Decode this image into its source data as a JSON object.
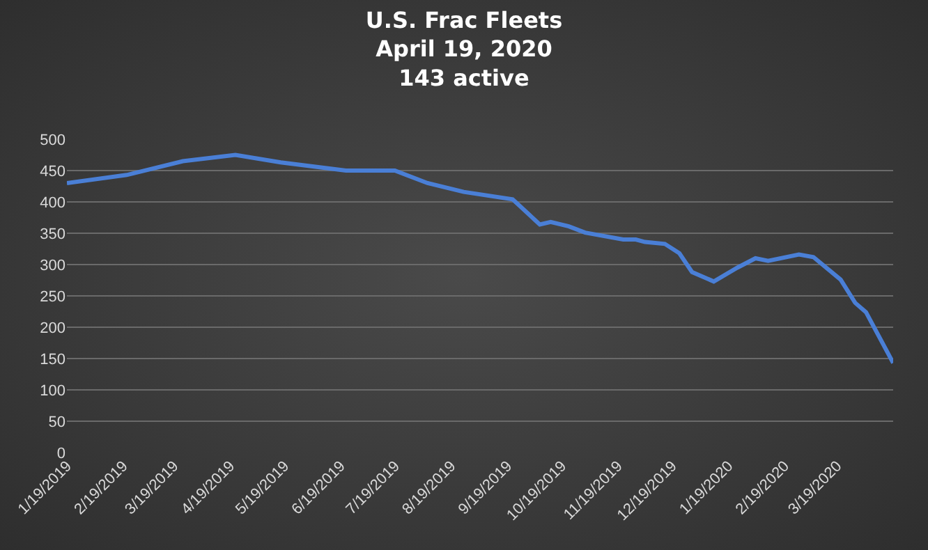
{
  "chart_data": {
    "type": "line",
    "title": "U.S. Frac Fleets\nApril 19, 2020\n143 active",
    "x": [
      "2019-01-19",
      "2019-02-21",
      "2019-03-24",
      "2019-04-22",
      "2019-05-17",
      "2019-06-22",
      "2019-07-19",
      "2019-08-06",
      "2019-08-26",
      "2019-09-22",
      "2019-10-07",
      "2019-10-13",
      "2019-10-23",
      "2019-11-01",
      "2019-11-22",
      "2019-11-29",
      "2019-12-04",
      "2019-12-15",
      "2019-12-23",
      "2019-12-30",
      "2020-01-11",
      "2020-01-24",
      "2020-02-03",
      "2020-02-10",
      "2020-02-27",
      "2020-03-06",
      "2020-03-21",
      "2020-03-29",
      "2020-04-04",
      "2020-04-19"
    ],
    "series": [
      {
        "color": "#4a7fd6",
        "values": [
          430,
          443,
          465,
          475,
          463,
          450,
          450,
          430,
          416,
          404,
          364,
          368,
          361,
          351,
          340,
          340,
          336,
          333,
          318,
          288,
          273,
          295,
          310,
          306,
          316,
          312,
          276,
          239,
          224,
          143
        ]
      }
    ],
    "xlim": [
      "2019-01-19",
      "2020-04-19"
    ],
    "xticks": [
      {
        "value": "2019-01-19",
        "label": "1/19/2019"
      },
      {
        "value": "2019-02-19",
        "label": "2/19/2019"
      },
      {
        "value": "2019-03-19",
        "label": "3/19/2019"
      },
      {
        "value": "2019-04-19",
        "label": "4/19/2019"
      },
      {
        "value": "2019-05-19",
        "label": "5/19/2019"
      },
      {
        "value": "2019-06-19",
        "label": "6/19/2019"
      },
      {
        "value": "2019-07-19",
        "label": "7/19/2019"
      },
      {
        "value": "2019-08-19",
        "label": "8/19/2019"
      },
      {
        "value": "2019-09-19",
        "label": "9/19/2019"
      },
      {
        "value": "2019-10-19",
        "label": "10/19/2019"
      },
      {
        "value": "2019-11-19",
        "label": "11/19/2019"
      },
      {
        "value": "2019-12-19",
        "label": "12/19/2019"
      },
      {
        "value": "2020-01-19",
        "label": "1/19/2020"
      },
      {
        "value": "2020-02-19",
        "label": "2/19/2020"
      },
      {
        "value": "2020-03-19",
        "label": "3/19/2020"
      }
    ],
    "ylim": [
      0,
      500
    ],
    "yticks": [
      0,
      50,
      100,
      150,
      200,
      250,
      300,
      350,
      400,
      450,
      500
    ],
    "grid": "y",
    "legend": false,
    "marker": "none",
    "line_style": "solid"
  }
}
